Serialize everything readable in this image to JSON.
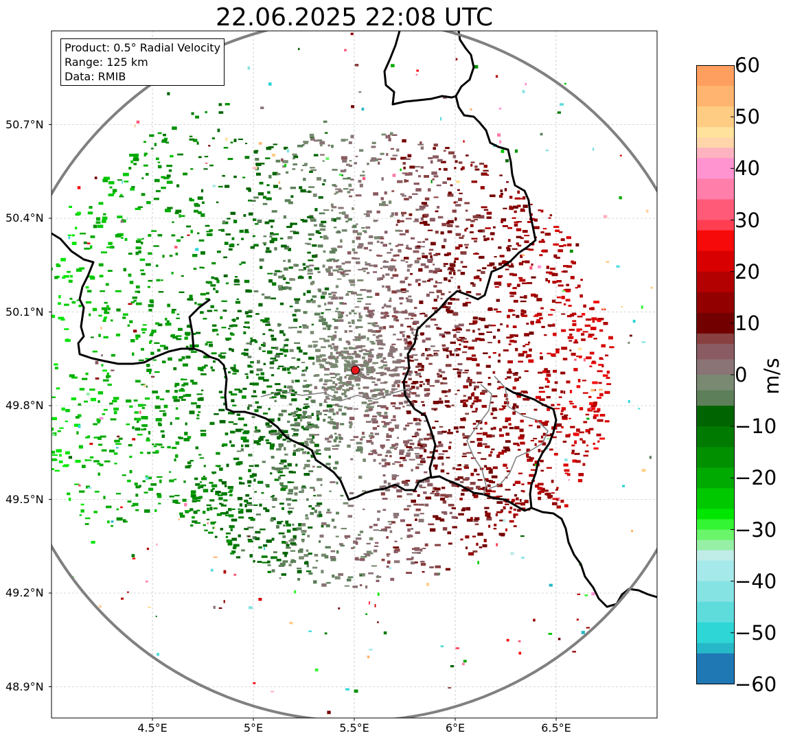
{
  "title": "22.06.2025 22:08 UTC",
  "info_box": {
    "product": "Product: 0.5° Radial Velocity",
    "range": "Range: 125 km",
    "data": "Data: RMIB"
  },
  "map": {
    "lon_range": [
      4.0,
      7.0
    ],
    "lat_range": [
      48.8,
      51.0
    ],
    "lat_ticks": [
      {
        "value": 50.7,
        "label": "50.7°N"
      },
      {
        "value": 50.4,
        "label": "50.4°N"
      },
      {
        "value": 50.1,
        "label": "50.1°N"
      },
      {
        "value": 49.8,
        "label": "49.8°N"
      },
      {
        "value": 49.5,
        "label": "49.5°N"
      },
      {
        "value": 49.2,
        "label": "49.2°N"
      },
      {
        "value": 48.9,
        "label": "48.9°N"
      }
    ],
    "lon_ticks": [
      {
        "value": 4.5,
        "label": "4.5°E"
      },
      {
        "value": 5.0,
        "label": "5°E"
      },
      {
        "value": 5.5,
        "label": "5.5°E"
      },
      {
        "value": 6.0,
        "label": "6°E"
      },
      {
        "value": 6.5,
        "label": "6.5°E"
      }
    ],
    "grid": true,
    "radar_site": {
      "lon": 5.505,
      "lat": 49.914
    },
    "range_ring_km": 125,
    "colors": {
      "range_ring": "#808080",
      "border": "#000000",
      "site_marker": "#e8161b"
    }
  },
  "colorbar": {
    "min": -60,
    "max": 60,
    "unit": "m/s",
    "ticks": [
      {
        "value": 60,
        "label": "60"
      },
      {
        "value": 50,
        "label": "50"
      },
      {
        "value": 40,
        "label": "40"
      },
      {
        "value": 30,
        "label": "30"
      },
      {
        "value": 20,
        "label": "20"
      },
      {
        "value": 10,
        "label": "10"
      },
      {
        "value": 0,
        "label": "0"
      },
      {
        "value": -10,
        "label": "−10"
      },
      {
        "value": -20,
        "label": "−20"
      },
      {
        "value": -30,
        "label": "−30"
      },
      {
        "value": -40,
        "label": "−40"
      },
      {
        "value": -50,
        "label": "−50"
      },
      {
        "value": -60,
        "label": "−60"
      }
    ],
    "stops": [
      {
        "from": 56,
        "to": 60,
        "color": "#ff9f5f"
      },
      {
        "from": 52,
        "to": 56,
        "color": "#ffb56f"
      },
      {
        "from": 48,
        "to": 52,
        "color": "#ffcc84"
      },
      {
        "from": 46,
        "to": 48,
        "color": "#ffe39c"
      },
      {
        "from": 44,
        "to": 46,
        "color": "#ffd5a9"
      },
      {
        "from": 42,
        "to": 44,
        "color": "#ffb3c0"
      },
      {
        "from": 38,
        "to": 42,
        "color": "#ff94d0"
      },
      {
        "from": 34,
        "to": 38,
        "color": "#ff7faa"
      },
      {
        "from": 30,
        "to": 34,
        "color": "#ff5a78"
      },
      {
        "from": 28,
        "to": 30,
        "color": "#ff3e52"
      },
      {
        "from": 24,
        "to": 28,
        "color": "#f70a0a"
      },
      {
        "from": 20,
        "to": 24,
        "color": "#d80000"
      },
      {
        "from": 16,
        "to": 20,
        "color": "#b30000"
      },
      {
        "from": 12,
        "to": 16,
        "color": "#930000"
      },
      {
        "from": 8,
        "to": 12,
        "color": "#730000"
      },
      {
        "from": 6,
        "to": 8,
        "color": "#884040"
      },
      {
        "from": 3,
        "to": 6,
        "color": "#8a5b62"
      },
      {
        "from": 0,
        "to": 3,
        "color": "#8a7476"
      },
      {
        "from": -3,
        "to": 0,
        "color": "#7a8a72"
      },
      {
        "from": -6,
        "to": -3,
        "color": "#5d7f5a"
      },
      {
        "from": -10,
        "to": -6,
        "color": "#006400"
      },
      {
        "from": -14,
        "to": -10,
        "color": "#007a00"
      },
      {
        "from": -18,
        "to": -14,
        "color": "#009000"
      },
      {
        "from": -22,
        "to": -18,
        "color": "#00aa00"
      },
      {
        "from": -26,
        "to": -22,
        "color": "#00c800"
      },
      {
        "from": -28,
        "to": -26,
        "color": "#00e600"
      },
      {
        "from": -30,
        "to": -28,
        "color": "#33f533"
      },
      {
        "from": -32,
        "to": -30,
        "color": "#6af56a"
      },
      {
        "from": -34,
        "to": -32,
        "color": "#95f0a5"
      },
      {
        "from": -36,
        "to": -34,
        "color": "#c0ece8"
      },
      {
        "from": -40,
        "to": -36,
        "color": "#a6e9ea"
      },
      {
        "from": -44,
        "to": -40,
        "color": "#86e3e3"
      },
      {
        "from": -48,
        "to": -44,
        "color": "#5edcdc"
      },
      {
        "from": -52,
        "to": -48,
        "color": "#2ed6d6"
      },
      {
        "from": -54,
        "to": -52,
        "color": "#26b8c8"
      },
      {
        "from": -60,
        "to": -54,
        "color": "#1f77b4"
      }
    ]
  }
}
